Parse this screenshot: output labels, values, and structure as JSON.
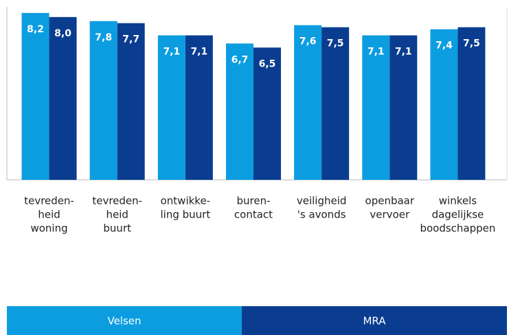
{
  "chart_data": {
    "type": "bar",
    "categories": [
      [
        "tevreden-",
        "heid",
        "woning"
      ],
      [
        "tevreden-",
        "heid",
        "buurt"
      ],
      [
        "ontwikke-",
        "ling buurt"
      ],
      [
        "buren-",
        "contact"
      ],
      [
        "veiligheid",
        "'s avonds"
      ],
      [
        "openbaar",
        "vervoer"
      ],
      [
        "winkels",
        "dagelijkse",
        "boodschappen"
      ]
    ],
    "series": [
      {
        "name": "Velsen",
        "color": "#0b9de0",
        "values": [
          8.2,
          7.8,
          7.1,
          6.7,
          7.6,
          7.1,
          7.4
        ],
        "value_labels": [
          "8,2",
          "7,8",
          "7,1",
          "6,7",
          "7,6",
          "7,1",
          "7,4"
        ]
      },
      {
        "name": "MRA",
        "color": "#0a3d8f",
        "values": [
          8.0,
          7.7,
          7.1,
          6.5,
          7.5,
          7.1,
          7.5
        ],
        "value_labels": [
          "8,0",
          "7,7",
          "7,1",
          "6,5",
          "7,5",
          "7,1",
          "7,5"
        ]
      }
    ],
    "ylim": [
      0,
      8.5
    ]
  }
}
